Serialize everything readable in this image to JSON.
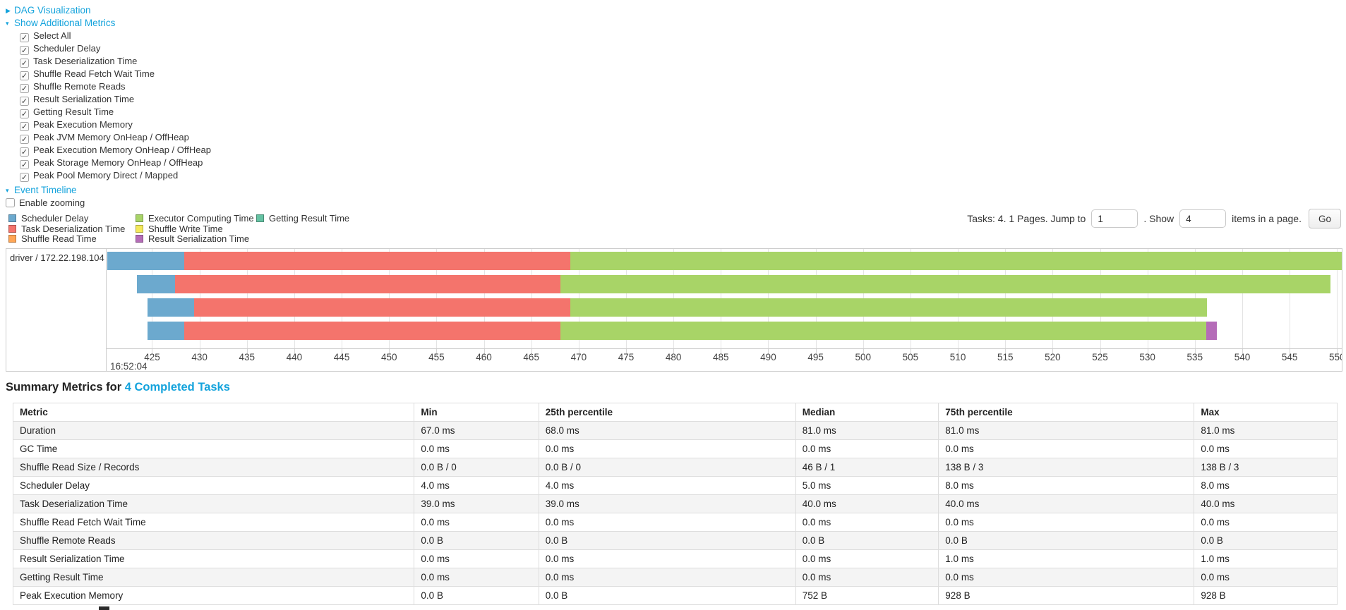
{
  "panels": {
    "dag": {
      "label": "DAG Visualization",
      "arrow": "▶"
    },
    "metrics": {
      "label": "Show Additional Metrics",
      "arrow": "▾"
    },
    "timeline": {
      "label": "Event Timeline",
      "arrow": "▾"
    }
  },
  "metrics_checkboxes": [
    {
      "label": "Select All",
      "checked": true
    },
    {
      "label": "Scheduler Delay",
      "checked": true
    },
    {
      "label": "Task Deserialization Time",
      "checked": true
    },
    {
      "label": "Shuffle Read Fetch Wait Time",
      "checked": true
    },
    {
      "label": "Shuffle Remote Reads",
      "checked": true
    },
    {
      "label": "Result Serialization Time",
      "checked": true
    },
    {
      "label": "Getting Result Time",
      "checked": true
    },
    {
      "label": "Peak Execution Memory",
      "checked": true
    },
    {
      "label": "Peak JVM Memory OnHeap / OffHeap",
      "checked": true
    },
    {
      "label": "Peak Execution Memory OnHeap / OffHeap",
      "checked": true
    },
    {
      "label": "Peak Storage Memory OnHeap / OffHeap",
      "checked": true
    },
    {
      "label": "Peak Pool Memory Direct / Mapped",
      "checked": true
    }
  ],
  "enable_zooming": {
    "label": "Enable zooming",
    "checked": false
  },
  "colors": {
    "scheduler_delay": "#6CA9CE",
    "task_deserialization": "#F4746C",
    "shuffle_read": "#FFA656",
    "executor_computing": "#A8D467",
    "shuffle_write": "#F4E95B",
    "result_serialization": "#B56CB8",
    "getting_result": "#65C2A3"
  },
  "legend_columns": [
    [
      {
        "key": "scheduler_delay",
        "label": "Scheduler Delay"
      },
      {
        "key": "task_deserialization",
        "label": "Task Deserialization Time"
      },
      {
        "key": "shuffle_read",
        "label": "Shuffle Read Time"
      }
    ],
    [
      {
        "key": "executor_computing",
        "label": "Executor Computing Time"
      },
      {
        "key": "shuffle_write",
        "label": "Shuffle Write Time"
      },
      {
        "key": "result_serialization",
        "label": "Result Serialization Time"
      }
    ],
    [
      {
        "key": "getting_result",
        "label": "Getting Result Time"
      }
    ]
  ],
  "pagination": {
    "tasks_text": "Tasks: 4. 1 Pages. Jump to",
    "jump_value": "1",
    "show_text": ". Show",
    "show_value": "4",
    "items_text": "items in a page.",
    "go_label": "Go"
  },
  "timeline_chart": {
    "executor_label": "driver / 172.22.198.104",
    "axis": {
      "domain": [
        420.2,
        550.5
      ],
      "ticks": [
        425,
        430,
        435,
        440,
        445,
        450,
        455,
        460,
        465,
        470,
        475,
        480,
        485,
        490,
        495,
        500,
        505,
        510,
        515,
        520,
        525,
        530,
        535,
        540,
        545,
        550
      ],
      "time_label": "16:52:04"
    },
    "tasks": [
      {
        "segments": [
          {
            "type": "scheduler_delay",
            "start": 420.3,
            "end": 428.4
          },
          {
            "type": "task_deserialization",
            "start": 428.4,
            "end": 469.1
          },
          {
            "type": "executor_computing",
            "start": 469.1,
            "end": 551.0
          }
        ]
      },
      {
        "segments": [
          {
            "type": "scheduler_delay",
            "start": 423.4,
            "end": 427.4
          },
          {
            "type": "task_deserialization",
            "start": 427.4,
            "end": 468.1
          },
          {
            "type": "executor_computing",
            "start": 468.1,
            "end": 549.3
          }
        ]
      },
      {
        "segments": [
          {
            "type": "scheduler_delay",
            "start": 424.5,
            "end": 429.4
          },
          {
            "type": "task_deserialization",
            "start": 429.4,
            "end": 469.1
          },
          {
            "type": "executor_computing",
            "start": 469.1,
            "end": 536.3
          }
        ]
      },
      {
        "segments": [
          {
            "type": "scheduler_delay",
            "start": 424.5,
            "end": 428.4
          },
          {
            "type": "task_deserialization",
            "start": 428.4,
            "end": 468.1
          },
          {
            "type": "executor_computing",
            "start": 468.1,
            "end": 536.2
          },
          {
            "type": "result_serialization",
            "start": 536.2,
            "end": 537.3
          }
        ]
      }
    ]
  },
  "summary": {
    "heading_prefix": "Summary Metrics for ",
    "heading_link": "4 Completed Tasks"
  },
  "table": {
    "columns": [
      "Metric",
      "Min",
      "25th percentile",
      "Median",
      "75th percentile",
      "Max"
    ],
    "col_widths_pct": [
      30.3,
      9.4,
      19.4,
      10.8,
      19.3,
      10.8
    ],
    "rows": [
      {
        "metric": "Duration",
        "values": [
          "67.0 ms",
          "68.0 ms",
          "81.0 ms",
          "81.0 ms",
          "81.0 ms"
        ]
      },
      {
        "metric": "GC Time",
        "values": [
          "0.0 ms",
          "0.0 ms",
          "0.0 ms",
          "0.0 ms",
          "0.0 ms"
        ]
      },
      {
        "metric": "Shuffle Read Size / Records",
        "values": [
          "0.0 B / 0",
          "0.0 B / 0",
          "46 B / 1",
          "138 B / 3",
          "138 B / 3"
        ]
      },
      {
        "metric": "Scheduler Delay",
        "values": [
          "4.0 ms",
          "4.0 ms",
          "5.0 ms",
          "8.0 ms",
          "8.0 ms"
        ]
      },
      {
        "metric": "Task Deserialization Time",
        "values": [
          "39.0 ms",
          "39.0 ms",
          "40.0 ms",
          "40.0 ms",
          "40.0 ms"
        ]
      },
      {
        "metric": "Shuffle Read Fetch Wait Time",
        "values": [
          "0.0 ms",
          "0.0 ms",
          "0.0 ms",
          "0.0 ms",
          "0.0 ms"
        ]
      },
      {
        "metric": "Shuffle Remote Reads",
        "values": [
          "0.0 B",
          "0.0 B",
          "0.0 B",
          "0.0 B",
          "0.0 B"
        ]
      },
      {
        "metric": "Result Serialization Time",
        "values": [
          "0.0 ms",
          "0.0 ms",
          "0.0 ms",
          "1.0 ms",
          "1.0 ms"
        ]
      },
      {
        "metric": "Getting Result Time",
        "values": [
          "0.0 ms",
          "0.0 ms",
          "0.0 ms",
          "0.0 ms",
          "0.0 ms"
        ]
      },
      {
        "metric": "Peak Execution Memory",
        "values": [
          "0.0 B",
          "0.0 B",
          "752 B",
          "928 B",
          "928 B"
        ]
      }
    ]
  }
}
